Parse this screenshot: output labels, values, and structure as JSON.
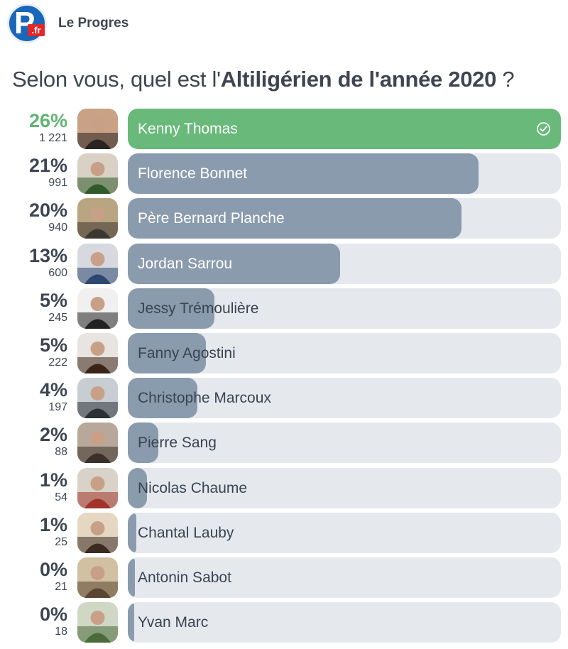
{
  "header": {
    "logo_letter": "P",
    "logo_suffix": ".fr",
    "brand": "Le Progres"
  },
  "question": {
    "prefix": "Selon vous, quel est l'",
    "bold": "Altiligérien de l'année 2020",
    "suffix": " ?"
  },
  "colors": {
    "winner": "#5fb574",
    "winner_fill": "#68b97a",
    "bar_fill": "#8a9bae",
    "track": "#e5e9ee"
  },
  "options": [
    {
      "name": "Kenny Thomas",
      "percent": "26%",
      "votes": "1 221",
      "share": 1.0,
      "winner": true,
      "selected_icon": "check-circle-icon",
      "avatar_colors": [
        "#2a2522",
        "#c9a184"
      ]
    },
    {
      "name": "Florence Bonnet",
      "percent": "21%",
      "votes": "991",
      "share": 0.81,
      "winner": false,
      "avatar_colors": [
        "#2f5a2c",
        "#d9d2c4"
      ]
    },
    {
      "name": "Père Bernard Planche",
      "percent": "20%",
      "votes": "940",
      "share": 0.77,
      "winner": false,
      "avatar_colors": [
        "#3c3630",
        "#b9a582"
      ]
    },
    {
      "name": "Jordan Sarrou",
      "percent": "13%",
      "votes": "600",
      "share": 0.49,
      "winner": false,
      "avatar_colors": [
        "#2c4870",
        "#d7d9df"
      ]
    },
    {
      "name": "Jessy Trémoulière",
      "percent": "5%",
      "votes": "245",
      "share": 0.2,
      "winner": false,
      "avatar_colors": [
        "#222222",
        "#f0f0f0"
      ]
    },
    {
      "name": "Fanny Agostini",
      "percent": "5%",
      "votes": "222",
      "share": 0.18,
      "winner": false,
      "avatar_colors": [
        "#3a2418",
        "#e8e4df"
      ]
    },
    {
      "name": "Christophe Marcoux",
      "percent": "4%",
      "votes": "197",
      "share": 0.16,
      "winner": false,
      "avatar_colors": [
        "#2b2f36",
        "#c7cdd2"
      ]
    },
    {
      "name": "Pierre Sang",
      "percent": "2%",
      "votes": "88",
      "share": 0.07,
      "winner": false,
      "avatar_colors": [
        "#3b2f2a",
        "#b8a89b"
      ]
    },
    {
      "name": "Nicolas Chaume",
      "percent": "1%",
      "votes": "54",
      "share": 0.045,
      "winner": false,
      "avatar_colors": [
        "#a33328",
        "#d8d2c8"
      ]
    },
    {
      "name": "Chantal Lauby",
      "percent": "1%",
      "votes": "25",
      "share": 0.02,
      "winner": false,
      "avatar_colors": [
        "#3a2a20",
        "#e6d7c2"
      ]
    },
    {
      "name": "Antonin Sabot",
      "percent": "0%",
      "votes": "21",
      "share": 0.017,
      "winner": false,
      "avatar_colors": [
        "#5a4432",
        "#d1c0a1"
      ]
    },
    {
      "name": "Yvan Marc",
      "percent": "0%",
      "votes": "18",
      "share": 0.015,
      "winner": false,
      "avatar_colors": [
        "#4a6a3a",
        "#cfd8c4"
      ]
    }
  ]
}
